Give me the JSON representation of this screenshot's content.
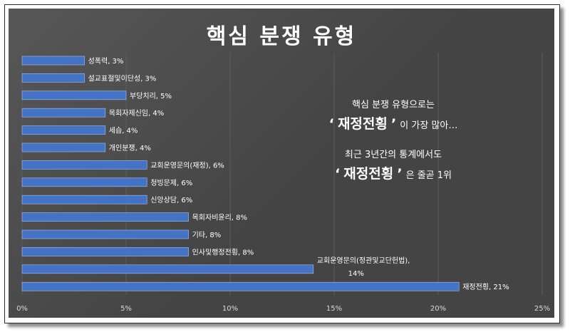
{
  "chart_data": {
    "type": "bar",
    "orientation": "horizontal",
    "title": "핵심 분쟁 유형",
    "xlim": [
      0,
      25
    ],
    "xticks": [
      "0%",
      "5%",
      "10%",
      "15%",
      "20%",
      "25%"
    ],
    "grid": "vertical",
    "bar_color": "#4472c4",
    "categories": [
      "성폭력",
      "설교표절및이단성",
      "부당치리",
      "목회자제신임",
      "세습",
      "개인분쟁",
      "교회운영문의(재정)",
      "청빙문제",
      "신앙상담",
      "목회자비윤리",
      "기타",
      "인사및행정전횡",
      "교회운영문의(정관및교단헌법)",
      "재정전횡"
    ],
    "values": [
      3,
      3,
      5,
      4,
      4,
      4,
      6,
      6,
      6,
      8,
      8,
      8,
      14,
      21
    ],
    "data_labels": [
      "성폭력, 3%",
      "설교표절및이단성, 3%",
      "부당치리, 5%",
      "목회자제신임, 4%",
      "세습, 4%",
      "개인분쟁, 4%",
      "교회운영문의(재정), 6%",
      "청빙문제, 6%",
      "신앙상담, 6%",
      "목회자비윤리, 8%",
      "기타, 8%",
      "인사및행정전횡, 8%",
      "교회운영문의(정관및교단헌법),",
      "재정전횡, 21%"
    ],
    "data_label_extra": "14%"
  },
  "annotation": {
    "line1": "핵심 분쟁 유형으로는",
    "line2_open": "‘",
    "line2_highlight": "재정전횡",
    "line2_close": "’",
    "line2_rest": "이 가장 많아…",
    "line3": "최근 3년간의 통계에서도",
    "line4_open": "‘",
    "line4_highlight": "재정전횡",
    "line4_close": "’",
    "line4_rest": "은 줄곧 1위"
  }
}
